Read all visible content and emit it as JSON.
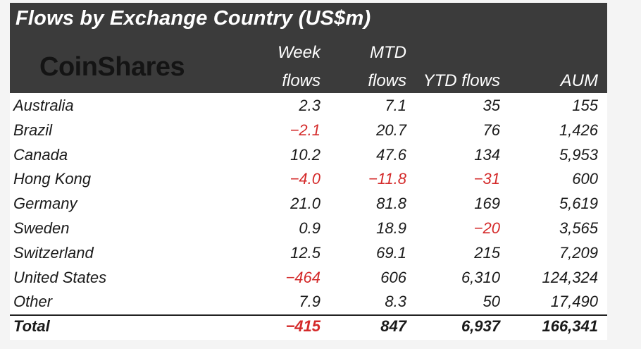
{
  "title": "Flows by Exchange Country (US$m)",
  "logo_text": "CoinShares",
  "columns": {
    "week_line1": "Week",
    "week_line2": "flows",
    "mtd_line1": "MTD",
    "mtd_line2": "flows",
    "ytd": "YTD flows",
    "aum": "AUM"
  },
  "rows": [
    {
      "country": "Australia",
      "week": "2.3",
      "mtd": "7.1",
      "ytd": "35",
      "aum": "155"
    },
    {
      "country": "Brazil",
      "week": "-2.1",
      "mtd": "20.7",
      "ytd": "76",
      "aum": "1,426"
    },
    {
      "country": "Canada",
      "week": "10.2",
      "mtd": "47.6",
      "ytd": "134",
      "aum": "5,953"
    },
    {
      "country": "Hong Kong",
      "week": "-4.0",
      "mtd": "-11.8",
      "ytd": "-31",
      "aum": "600"
    },
    {
      "country": "Germany",
      "week": "21.0",
      "mtd": "81.8",
      "ytd": "169",
      "aum": "5,619"
    },
    {
      "country": "Sweden",
      "week": "0.9",
      "mtd": "18.9",
      "ytd": "-20",
      "aum": "3,565"
    },
    {
      "country": "Switzerland",
      "week": "12.5",
      "mtd": "69.1",
      "ytd": "215",
      "aum": "7,209"
    },
    {
      "country": "United States",
      "week": "-464",
      "mtd": "606",
      "ytd": "6,310",
      "aum": "124,324"
    },
    {
      "country": "Other",
      "week": "7.9",
      "mtd": "8.3",
      "ytd": "50",
      "aum": "17,490"
    }
  ],
  "total": {
    "label": "Total",
    "week": "-415",
    "mtd": "847",
    "ytd": "6,937",
    "aum": "166,341"
  },
  "colors": {
    "header_bg": "#3b3b3b",
    "negative": "#d42a2a",
    "text": "#1a1a1a"
  }
}
